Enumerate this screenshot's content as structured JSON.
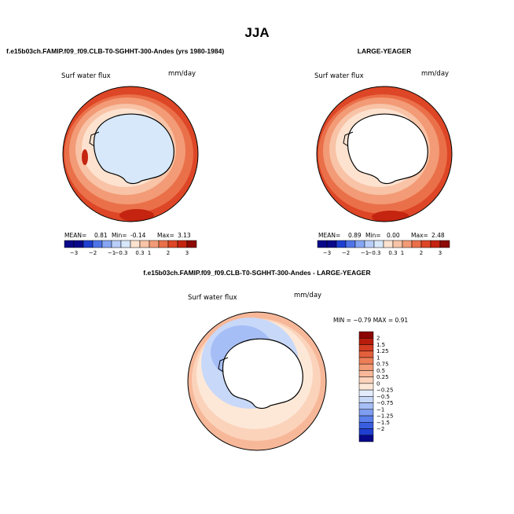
{
  "chart_data": {
    "type": "heatmap",
    "title": "JJA",
    "colors": {
      "neg": [
        "#08088a",
        "#1f3fd0",
        "#4f74e8",
        "#86a6f4",
        "#b8cdf8",
        "#d8e8fb"
      ],
      "pos": [
        "#fde2cf",
        "#f8c3a6",
        "#f29b76",
        "#ea704a",
        "#dd4626",
        "#c42410",
        "#8e0a05"
      ],
      "diff": [
        "#08088a",
        "#1f3fd0",
        "#3a5ee0",
        "#5b80ec",
        "#7f9ef2",
        "#a6bef6",
        "#c8d8f9",
        "#e2ecfc",
        "#fde8d8",
        "#fbd3bb",
        "#f7b899",
        "#f29b76",
        "#ec7e58",
        "#e35f3b",
        "#d43c22",
        "#b81c0c",
        "#8a0503"
      ],
      "land": "#ffffff",
      "ice_shelf": "#d6e8fa"
    },
    "panels": [
      {
        "id": "top-left",
        "title": "f.e15b03ch.FAMIP.f09_f09.CLB-T0-SGHHT-300-Andes (yrs 1980-1984)",
        "field_label": "Surf water flux",
        "units": "mm/day",
        "stats": {
          "mean_label": "MEAN=",
          "mean": "0.81",
          "min_label": "Min=",
          "min": "-0.14",
          "max_label": "Max=",
          "max": "3.13"
        },
        "levels": [
          "-3",
          "-2",
          "-1",
          "-0.3",
          "0.3",
          "1",
          "2",
          "3"
        ],
        "ring_values": [
          0.2,
          0.6,
          1.2,
          2.0
        ],
        "continent_value": -0.1
      },
      {
        "id": "top-right",
        "title": "LARGE-YEAGER",
        "field_label": "Surf water flux",
        "units": "mm/day",
        "stats": {
          "mean_label": "MEAN=",
          "mean": "0.89",
          "min_label": "Min=",
          "min": "0.00",
          "max_label": "Max=",
          "max": "2.48"
        },
        "levels": [
          "-3",
          "-2",
          "-1",
          "-0.3",
          "0.3",
          "1",
          "2",
          "3"
        ],
        "ring_values": [
          0.25,
          0.8,
          1.4,
          2.1
        ],
        "continent_value": null
      },
      {
        "id": "bottom",
        "title": "f.e15b03ch.FAMIP.f09_f09.CLB-T0-SGHHT-300-Andes - LARGE-YEAGER",
        "field_label": "Surf water flux",
        "units": "mm/day",
        "stats_text": "MIN =  −0.79  MAX =   0.91",
        "levels": [
          "2",
          "1.5",
          "1.25",
          "1",
          "0.75",
          "0.5",
          "0.25",
          "0",
          "-0.25",
          "-0.5",
          "-0.75",
          "-1",
          "-1.25",
          "-1.5",
          "-2"
        ],
        "ring_values": [
          -0.3,
          -0.1,
          0.1,
          0.35
        ]
      }
    ]
  }
}
